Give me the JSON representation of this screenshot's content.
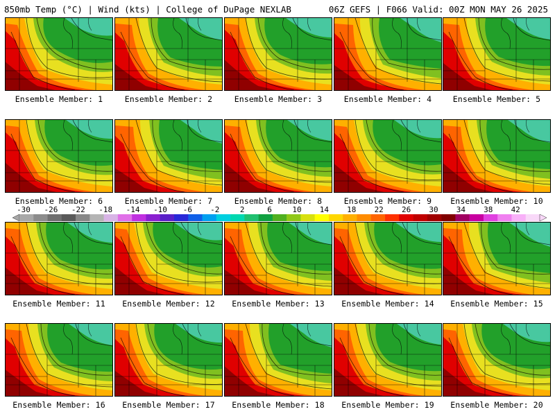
{
  "header": {
    "left": "850mb Temp (°C) | Wind (kts) | College of DuPage NEXLAB",
    "right": "06Z GEFS | F066 Valid: 00Z MON MAY 26 2025"
  },
  "members": [
    {
      "label": "Ensemble Member: 1",
      "warmth": 0.55
    },
    {
      "label": "Ensemble Member: 2",
      "warmth": 0.45
    },
    {
      "label": "Ensemble Member: 3",
      "warmth": 0.65
    },
    {
      "label": "Ensemble Member: 4",
      "warmth": 0.4
    },
    {
      "label": "Ensemble Member: 5",
      "warmth": 0.5
    },
    {
      "label": "Ensemble Member: 6",
      "warmth": 0.6
    },
    {
      "label": "Ensemble Member: 7",
      "warmth": 0.35
    },
    {
      "label": "Ensemble Member: 8",
      "warmth": 0.62
    },
    {
      "label": "Ensemble Member: 9",
      "warmth": 0.55
    },
    {
      "label": "Ensemble Member: 10",
      "warmth": 0.58
    },
    {
      "label": "Ensemble Member: 11",
      "warmth": 0.5
    },
    {
      "label": "Ensemble Member: 12",
      "warmth": 0.55
    },
    {
      "label": "Ensemble Member: 13",
      "warmth": 0.4
    },
    {
      "label": "Ensemble Member: 14",
      "warmth": 0.52
    },
    {
      "label": "Ensemble Member: 15",
      "warmth": 0.6
    },
    {
      "label": "Ensemble Member: 16",
      "warmth": 0.45
    },
    {
      "label": "Ensemble Member: 17",
      "warmth": 0.4
    },
    {
      "label": "Ensemble Member: 18",
      "warmth": 0.62
    },
    {
      "label": "Ensemble Member: 19",
      "warmth": 0.52
    },
    {
      "label": "Ensemble Member: 20",
      "warmth": 0.55
    }
  ],
  "colorbar": {
    "tick_labels": [
      "-30",
      "-26",
      "-22",
      "-18",
      "-14",
      "-10",
      "-6",
      "-2",
      "2",
      "6",
      "10",
      "14",
      "18",
      "22",
      "26",
      "30",
      "34",
      "38",
      "42"
    ],
    "colors": [
      "#a8a8a8",
      "#8c8c8c",
      "#707070",
      "#5a5a5a",
      "#888888",
      "#b4b4b4",
      "#d8b4e6",
      "#e070e8",
      "#c030e0",
      "#8a20d0",
      "#5a20c8",
      "#2828d8",
      "#1060e8",
      "#00a0f0",
      "#00d0e0",
      "#00d8b0",
      "#20c070",
      "#10a040",
      "#50b020",
      "#90c818",
      "#d8e010",
      "#ffff00",
      "#ffd700",
      "#ffb000",
      "#ff8c00",
      "#ff6400",
      "#ff3000",
      "#e00000",
      "#c00000",
      "#a00000",
      "#800000",
      "#a00060",
      "#c800a0",
      "#e040e0",
      "#f080f0",
      "#f8b0f8",
      "#f8d8f8"
    ]
  }
}
